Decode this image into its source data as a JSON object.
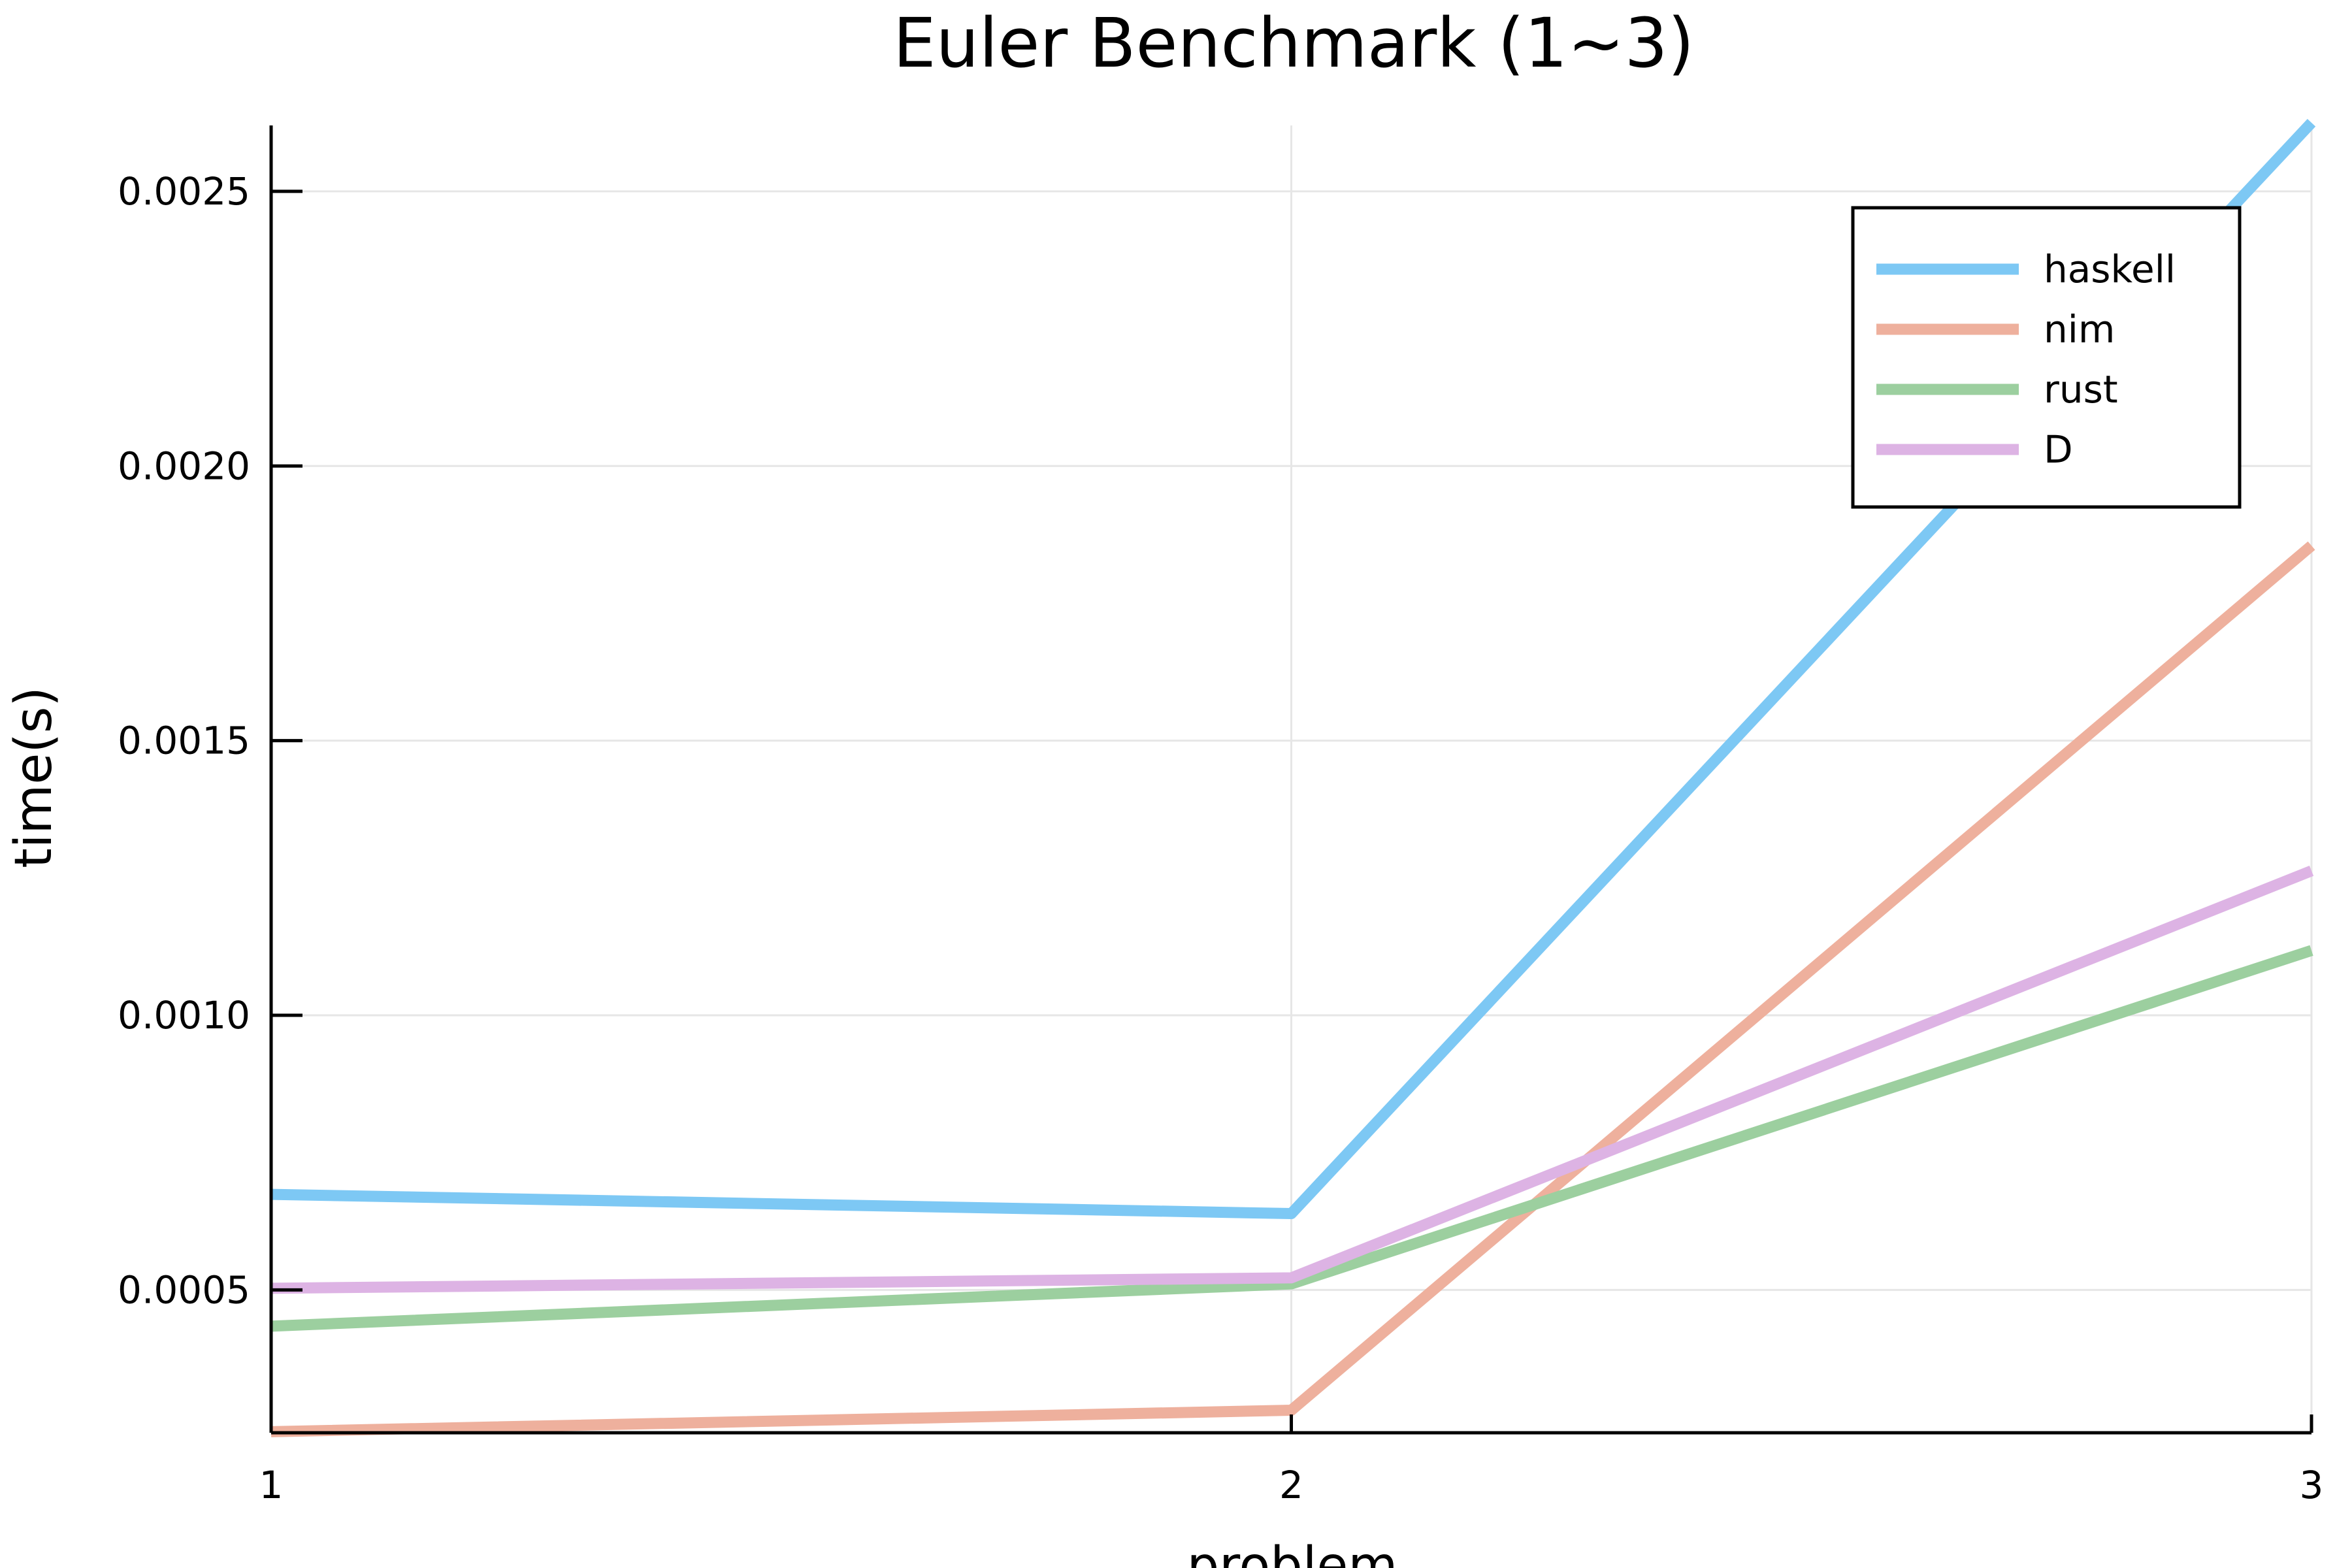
{
  "chart_data": {
    "type": "line",
    "title": "Euler Benchmark (1~3)",
    "xlabel": "problem",
    "ylabel": "time(s)",
    "x": [
      1,
      2,
      3
    ],
    "xlim": [
      1,
      3
    ],
    "ylim": [
      0.00024,
      0.00262
    ],
    "x_ticks": [
      1,
      2,
      3
    ],
    "x_tick_labels": [
      "1",
      "2",
      "3"
    ],
    "y_ticks": [
      0.0005,
      0.001,
      0.0015,
      0.002,
      0.0025
    ],
    "y_tick_labels": [
      "0.0005",
      "0.0010",
      "0.0015",
      "0.0020",
      "0.0025"
    ],
    "grid": true,
    "legend_position": "top-right",
    "series": [
      {
        "name": "haskell",
        "color": "#7dc8f4",
        "values": [
          0.000674,
          0.000639,
          0.002625
        ]
      },
      {
        "name": "nim",
        "color": "#eeb09d",
        "values": [
          0.000242,
          0.000281,
          0.001855
        ]
      },
      {
        "name": "rust",
        "color": "#9ccf9f",
        "values": [
          0.000434,
          0.000511,
          0.001118
        ]
      },
      {
        "name": "D",
        "color": "#ddb3e4",
        "values": [
          0.000503,
          0.000522,
          0.001263
        ]
      }
    ]
  }
}
